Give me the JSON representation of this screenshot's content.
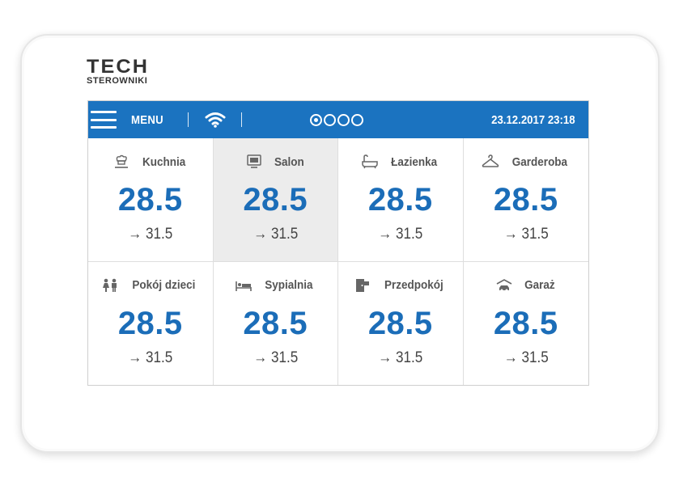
{
  "brand": {
    "name": "TECH",
    "subtitle": "STEROWNIKI"
  },
  "topbar": {
    "menu_label": "MENU",
    "datetime": "23.12.2017 23:18",
    "page_dots": 4,
    "active_page": 1,
    "wifi_icon": "wifi-icon",
    "accent_color": "#1b73c0"
  },
  "zones": [
    {
      "name": "Kuchnia",
      "icon": "kitchen-icon",
      "temp": "28.5",
      "target": "→ 31.5",
      "selected": false
    },
    {
      "name": "Salon",
      "icon": "tv-icon",
      "temp": "28.5",
      "target": "→ 31.5",
      "selected": true
    },
    {
      "name": "Łazienka",
      "icon": "bathtub-icon",
      "temp": "28.5",
      "target": "→ 31.5",
      "selected": false
    },
    {
      "name": "Garderoba",
      "icon": "hanger-icon",
      "temp": "28.5",
      "target": "→ 31.5",
      "selected": false
    },
    {
      "name": "Pokój dzieci",
      "icon": "children-icon",
      "temp": "28.5",
      "target": "→ 31.5",
      "selected": false
    },
    {
      "name": "Sypialnia",
      "icon": "bed-icon",
      "temp": "28.5",
      "target": "→ 31.5",
      "selected": false
    },
    {
      "name": "Przedpokój",
      "icon": "door-icon",
      "temp": "28.5",
      "target": "→ 31.5",
      "selected": false
    },
    {
      "name": "Garaż",
      "icon": "car-icon",
      "temp": "28.5",
      "target": "→ 31.5",
      "selected": false
    }
  ]
}
